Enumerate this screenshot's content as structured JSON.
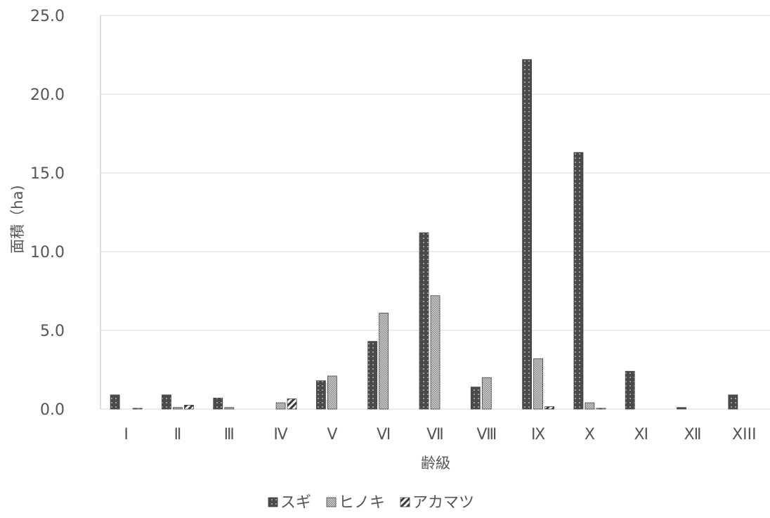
{
  "chart_data": {
    "type": "bar",
    "xlabel": "齢級",
    "ylabel": "面積（ha)",
    "ylim": [
      0,
      25
    ],
    "yticks": [
      "0.0",
      "5.0",
      "10.0",
      "15.0",
      "20.0",
      "25.0"
    ],
    "grid": true,
    "legend_position": "bottom",
    "categories": [
      "Ⅰ",
      "Ⅱ",
      "Ⅲ",
      "Ⅳ",
      "Ⅴ",
      "Ⅵ",
      "Ⅶ",
      "Ⅷ",
      "Ⅸ",
      "Ⅹ",
      "Ⅺ",
      "Ⅻ",
      "XIII"
    ],
    "series": [
      {
        "name": "スギ",
        "pattern": "dots",
        "color": "#4a4a4a",
        "values": [
          0.9,
          0.9,
          0.7,
          0.0,
          1.8,
          4.3,
          11.2,
          1.4,
          22.2,
          16.3,
          2.4,
          0.1,
          0.9
        ]
      },
      {
        "name": "ヒノキ",
        "pattern": "mesh",
        "color": "#9a9a9a",
        "values": [
          0.0,
          0.1,
          0.1,
          0.4,
          2.1,
          6.1,
          7.2,
          2.0,
          3.2,
          0.4,
          0.0,
          0.0,
          0.0
        ]
      },
      {
        "name": "アカマツ",
        "pattern": "hatch",
        "color": "#3a3a3a",
        "values": [
          0.05,
          0.25,
          0.0,
          0.65,
          0.0,
          0.0,
          0.0,
          0.0,
          0.15,
          0.05,
          0.0,
          0.0,
          0.0
        ]
      }
    ]
  }
}
